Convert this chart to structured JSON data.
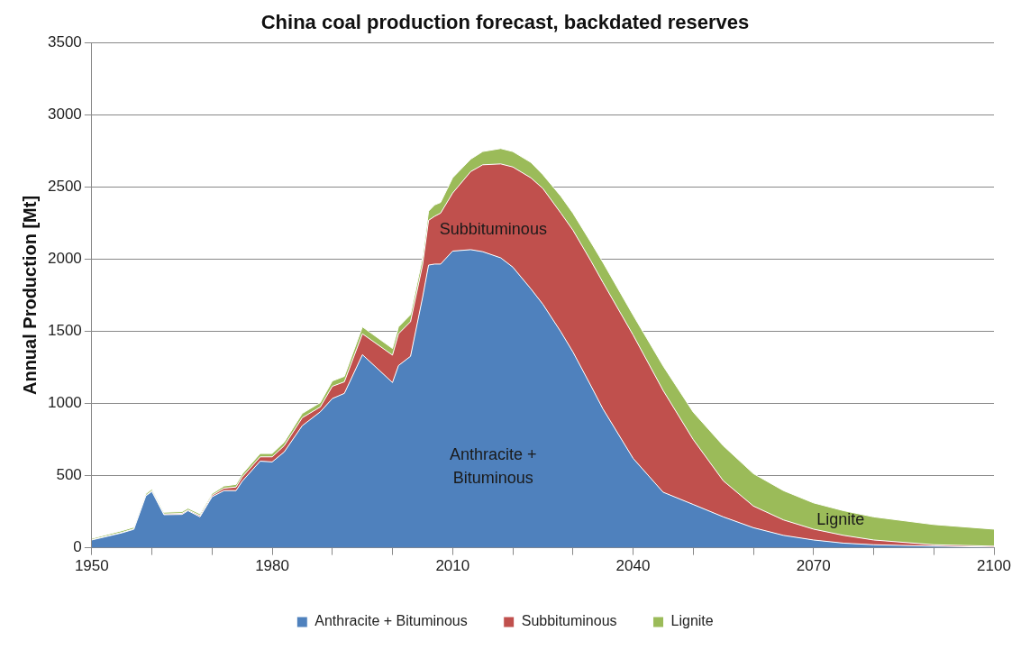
{
  "chart_data": {
    "type": "area",
    "stacked": true,
    "title": "China coal production forecast, backdated reserves",
    "ylabel": "Annual Production [Mt]",
    "x": [
      1950,
      1955,
      1957,
      1959,
      1960,
      1962,
      1965,
      1966,
      1968,
      1970,
      1972,
      1974,
      1975,
      1978,
      1980,
      1982,
      1985,
      1988,
      1990,
      1992,
      1995,
      2000,
      2001,
      2003,
      2005,
      2006,
      2007,
      2008,
      2010,
      2013,
      2015,
      2018,
      2020,
      2023,
      2025,
      2028,
      2030,
      2033,
      2035,
      2040,
      2045,
      2050,
      2055,
      2060,
      2065,
      2070,
      2075,
      2080,
      2090,
      2100
    ],
    "series": [
      {
        "name": "Anthracite + Bituminous",
        "color": "#4f81bd",
        "values": [
          54,
          103,
          128,
          360,
          390,
          229,
          231,
          257,
          214,
          353,
          396,
          396,
          460,
          600,
          595,
          664,
          846,
          942,
          1034,
          1070,
          1338,
          1145,
          1263,
          1327,
          1734,
          1959,
          1966,
          1966,
          2056,
          2066,
          2052,
          2009,
          1945,
          1795,
          1688,
          1496,
          1357,
          1122,
          962,
          620,
          385,
          300,
          214,
          139,
          86,
          54,
          32,
          21,
          11,
          4
        ]
      },
      {
        "name": "Subbituminous",
        "color": "#c0504d",
        "values": [
          2,
          3,
          3,
          3,
          5,
          5,
          7,
          5,
          9,
          10,
          17,
          25,
          30,
          30,
          35,
          43,
          55,
          34,
          85,
          80,
          145,
          190,
          220,
          240,
          225,
          310,
          331,
          353,
          402,
          541,
          602,
          651,
          694,
          769,
          802,
          823,
          844,
          865,
          876,
          855,
          705,
          450,
          250,
          150,
          107,
          75,
          54,
          33,
          10,
          7
        ]
      },
      {
        "name": "Lignite",
        "color": "#9bbb59",
        "values": [
          9,
          12,
          12,
          12,
          12,
          12,
          12,
          12,
          12,
          12,
          15,
          18,
          20,
          23,
          23,
          25,
          30,
          30,
          37,
          38,
          48,
          46,
          48,
          49,
          53,
          64,
          79,
          74,
          106,
          86,
          92,
          107,
          107,
          107,
          96,
          117,
          118,
          129,
          139,
          138,
          170,
          190,
          243,
          225,
          203,
          182,
          171,
          160,
          140,
          118
        ]
      }
    ],
    "xlim": [
      1950,
      2100
    ],
    "xticks": [
      1950,
      {
        "value": 1960,
        "label": null
      },
      {
        "value": 1970,
        "label": null
      },
      1980,
      {
        "value": 1990,
        "label": null
      },
      {
        "value": 2000,
        "label": null
      },
      2010,
      {
        "value": 2020,
        "label": null
      },
      {
        "value": 2030,
        "label": null
      },
      2040,
      {
        "value": 2050,
        "label": null
      },
      {
        "value": 2060,
        "label": null
      },
      2070,
      {
        "value": 2080,
        "label": null
      },
      {
        "value": 2090,
        "label": null
      },
      2100
    ],
    "ylim": [
      0,
      3500
    ],
    "yticks": [
      0,
      500,
      1000,
      1500,
      2000,
      2500,
      3000,
      3500
    ],
    "grid": "y",
    "legend": "bottom",
    "annotations": [
      "Subbituminous",
      "Anthracite + Bituminous",
      "Lignite"
    ]
  }
}
